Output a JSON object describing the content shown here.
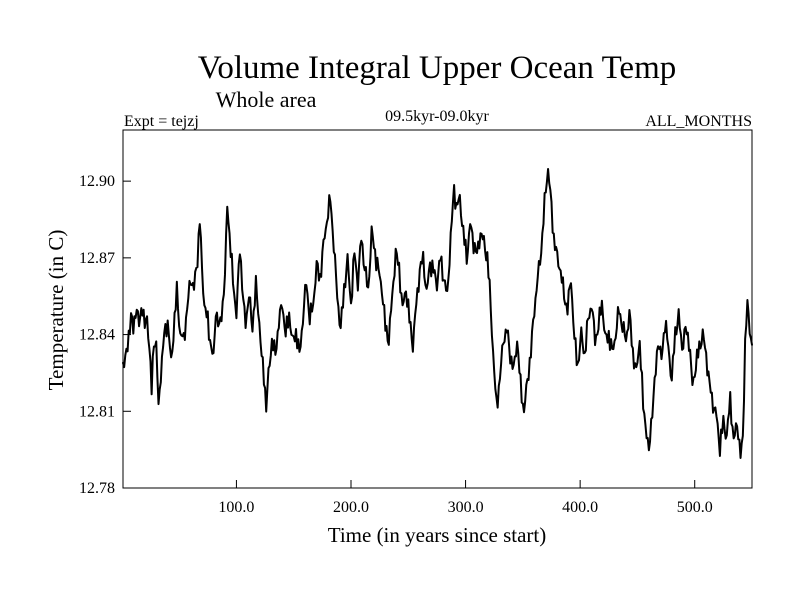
{
  "chart_data": {
    "type": "line",
    "title": "Volume Integral Upper Ocean Temp",
    "subtitle": "Whole area",
    "experiment_label": "Expt = tejzj",
    "period_label": "09.5kyr-09.0kyr",
    "months_label": "ALL_MONTHS",
    "xlabel": "Time (in years since start)",
    "ylabel": "Temperature (in C)",
    "xlim": [
      1,
      550
    ],
    "ylim": [
      12.78,
      12.92
    ],
    "x_ticks": [
      100,
      200,
      300,
      400,
      500
    ],
    "x_tick_labels": [
      "100.0",
      "200.0",
      "300.0",
      "400.0",
      "500.0"
    ],
    "y_ticks": [
      12.78,
      12.81,
      12.84,
      12.87,
      12.9
    ],
    "y_tick_labels": [
      "12.78",
      "12.81",
      "12.84",
      "12.87",
      "12.90"
    ],
    "grid": false,
    "series": [
      {
        "name": "Volume Integral Upper Ocean Temp",
        "color": "#000000",
        "anchor_points": [
          [
            1,
            12.829
          ],
          [
            5,
            12.834
          ],
          [
            8,
            12.849
          ],
          [
            10,
            12.841
          ],
          [
            13,
            12.852
          ],
          [
            15,
            12.843
          ],
          [
            18,
            12.852
          ],
          [
            20,
            12.843
          ],
          [
            22,
            12.846
          ],
          [
            24,
            12.836
          ],
          [
            26,
            12.818
          ],
          [
            28,
            12.838
          ],
          [
            30,
            12.836
          ],
          [
            32,
            12.811
          ],
          [
            34,
            12.825
          ],
          [
            37,
            12.84
          ],
          [
            40,
            12.845
          ],
          [
            43,
            12.829
          ],
          [
            46,
            12.846
          ],
          [
            48,
            12.857
          ],
          [
            51,
            12.84
          ],
          [
            54,
            12.838
          ],
          [
            57,
            12.85
          ],
          [
            60,
            12.862
          ],
          [
            63,
            12.858
          ],
          [
            66,
            12.87
          ],
          [
            68,
            12.885
          ],
          [
            70,
            12.865
          ],
          [
            72,
            12.852
          ],
          [
            75,
            12.845
          ],
          [
            77,
            12.838
          ],
          [
            80,
            12.83
          ],
          [
            82,
            12.85
          ],
          [
            85,
            12.842
          ],
          [
            88,
            12.852
          ],
          [
            90,
            12.862
          ],
          [
            92,
            12.892
          ],
          [
            95,
            12.872
          ],
          [
            97,
            12.862
          ],
          [
            100,
            12.847
          ],
          [
            103,
            12.875
          ],
          [
            106,
            12.852
          ],
          [
            108,
            12.845
          ],
          [
            111,
            12.855
          ],
          [
            114,
            12.843
          ],
          [
            117,
            12.859
          ],
          [
            120,
            12.845
          ],
          [
            122,
            12.831
          ],
          [
            124,
            12.824
          ],
          [
            126,
            12.812
          ],
          [
            128,
            12.824
          ],
          [
            131,
            12.838
          ],
          [
            134,
            12.832
          ],
          [
            137,
            12.845
          ],
          [
            140,
            12.852
          ],
          [
            143,
            12.84
          ],
          [
            146,
            12.848
          ],
          [
            149,
            12.837
          ],
          [
            152,
            12.841
          ],
          [
            155,
            12.832
          ],
          [
            158,
            12.846
          ],
          [
            161,
            12.861
          ],
          [
            164,
            12.846
          ],
          [
            167,
            12.852
          ],
          [
            170,
            12.867
          ],
          [
            173,
            12.862
          ],
          [
            176,
            12.875
          ],
          [
            179,
            12.885
          ],
          [
            182,
            12.893
          ],
          [
            185,
            12.875
          ],
          [
            188,
            12.855
          ],
          [
            191,
            12.842
          ],
          [
            194,
            12.858
          ],
          [
            197,
            12.869
          ],
          [
            200,
            12.852
          ],
          [
            203,
            12.872
          ],
          [
            206,
            12.86
          ],
          [
            209,
            12.878
          ],
          [
            212,
            12.866
          ],
          [
            215,
            12.857
          ],
          [
            218,
            12.88
          ],
          [
            221,
            12.872
          ],
          [
            224,
            12.865
          ],
          [
            227,
            12.858
          ],
          [
            230,
            12.843
          ],
          [
            233,
            12.838
          ],
          [
            236,
            12.855
          ],
          [
            239,
            12.872
          ],
          [
            242,
            12.866
          ],
          [
            245,
            12.85
          ],
          [
            248,
            12.858
          ],
          [
            251,
            12.846
          ],
          [
            254,
            12.836
          ],
          [
            257,
            12.852
          ],
          [
            260,
            12.865
          ],
          [
            263,
            12.87
          ],
          [
            266,
            12.856
          ],
          [
            269,
            12.868
          ],
          [
            272,
            12.865
          ],
          [
            275,
            12.86
          ],
          [
            278,
            12.87
          ],
          [
            281,
            12.862
          ],
          [
            284,
            12.855
          ],
          [
            287,
            12.878
          ],
          [
            290,
            12.897
          ],
          [
            292,
            12.89
          ],
          [
            295,
            12.893
          ],
          [
            298,
            12.88
          ],
          [
            301,
            12.87
          ],
          [
            304,
            12.883
          ],
          [
            307,
            12.876
          ],
          [
            310,
            12.871
          ],
          [
            313,
            12.88
          ],
          [
            316,
            12.876
          ],
          [
            319,
            12.87
          ],
          [
            321,
            12.858
          ],
          [
            323,
            12.842
          ],
          [
            325,
            12.825
          ],
          [
            327,
            12.812
          ],
          [
            330,
            12.823
          ],
          [
            333,
            12.838
          ],
          [
            336,
            12.842
          ],
          [
            339,
            12.832
          ],
          [
            342,
            12.826
          ],
          [
            345,
            12.838
          ],
          [
            348,
            12.82
          ],
          [
            351,
            12.81
          ],
          [
            354,
            12.822
          ],
          [
            357,
            12.833
          ],
          [
            360,
            12.85
          ],
          [
            363,
            12.862
          ],
          [
            366,
            12.873
          ],
          [
            368,
            12.885
          ],
          [
            370,
            12.897
          ],
          [
            372,
            12.905
          ],
          [
            374,
            12.895
          ],
          [
            377,
            12.878
          ],
          [
            380,
            12.87
          ],
          [
            383,
            12.865
          ],
          [
            386,
            12.855
          ],
          [
            389,
            12.85
          ],
          [
            392,
            12.862
          ],
          [
            395,
            12.838
          ],
          [
            398,
            12.828
          ],
          [
            401,
            12.84
          ],
          [
            404,
            12.832
          ],
          [
            407,
            12.846
          ],
          [
            410,
            12.852
          ],
          [
            413,
            12.838
          ],
          [
            416,
            12.843
          ],
          [
            419,
            12.853
          ],
          [
            422,
            12.838
          ],
          [
            425,
            12.84
          ],
          [
            428,
            12.833
          ],
          [
            431,
            12.84
          ],
          [
            434,
            12.85
          ],
          [
            437,
            12.843
          ],
          [
            440,
            12.838
          ],
          [
            443,
            12.848
          ],
          [
            446,
            12.833
          ],
          [
            449,
            12.825
          ],
          [
            452,
            12.838
          ],
          [
            455,
            12.812
          ],
          [
            458,
            12.802
          ],
          [
            460,
            12.793
          ],
          [
            462,
            12.806
          ],
          [
            465,
            12.82
          ],
          [
            468,
            12.838
          ],
          [
            471,
            12.83
          ],
          [
            474,
            12.845
          ],
          [
            477,
            12.835
          ],
          [
            480,
            12.822
          ],
          [
            483,
            12.841
          ],
          [
            486,
            12.847
          ],
          [
            489,
            12.835
          ],
          [
            492,
            12.842
          ],
          [
            495,
            12.838
          ],
          [
            498,
            12.82
          ],
          [
            501,
            12.828
          ],
          [
            504,
            12.835
          ],
          [
            507,
            12.84
          ],
          [
            510,
            12.832
          ],
          [
            513,
            12.82
          ],
          [
            516,
            12.813
          ],
          [
            519,
            12.808
          ],
          [
            522,
            12.796
          ],
          [
            525,
            12.806
          ],
          [
            528,
            12.8
          ],
          [
            531,
            12.815
          ],
          [
            534,
            12.798
          ],
          [
            537,
            12.806
          ],
          [
            540,
            12.792
          ],
          [
            542,
            12.8
          ],
          [
            544,
            12.836
          ],
          [
            546,
            12.852
          ],
          [
            548,
            12.843
          ],
          [
            550,
            12.836
          ]
        ]
      }
    ]
  }
}
